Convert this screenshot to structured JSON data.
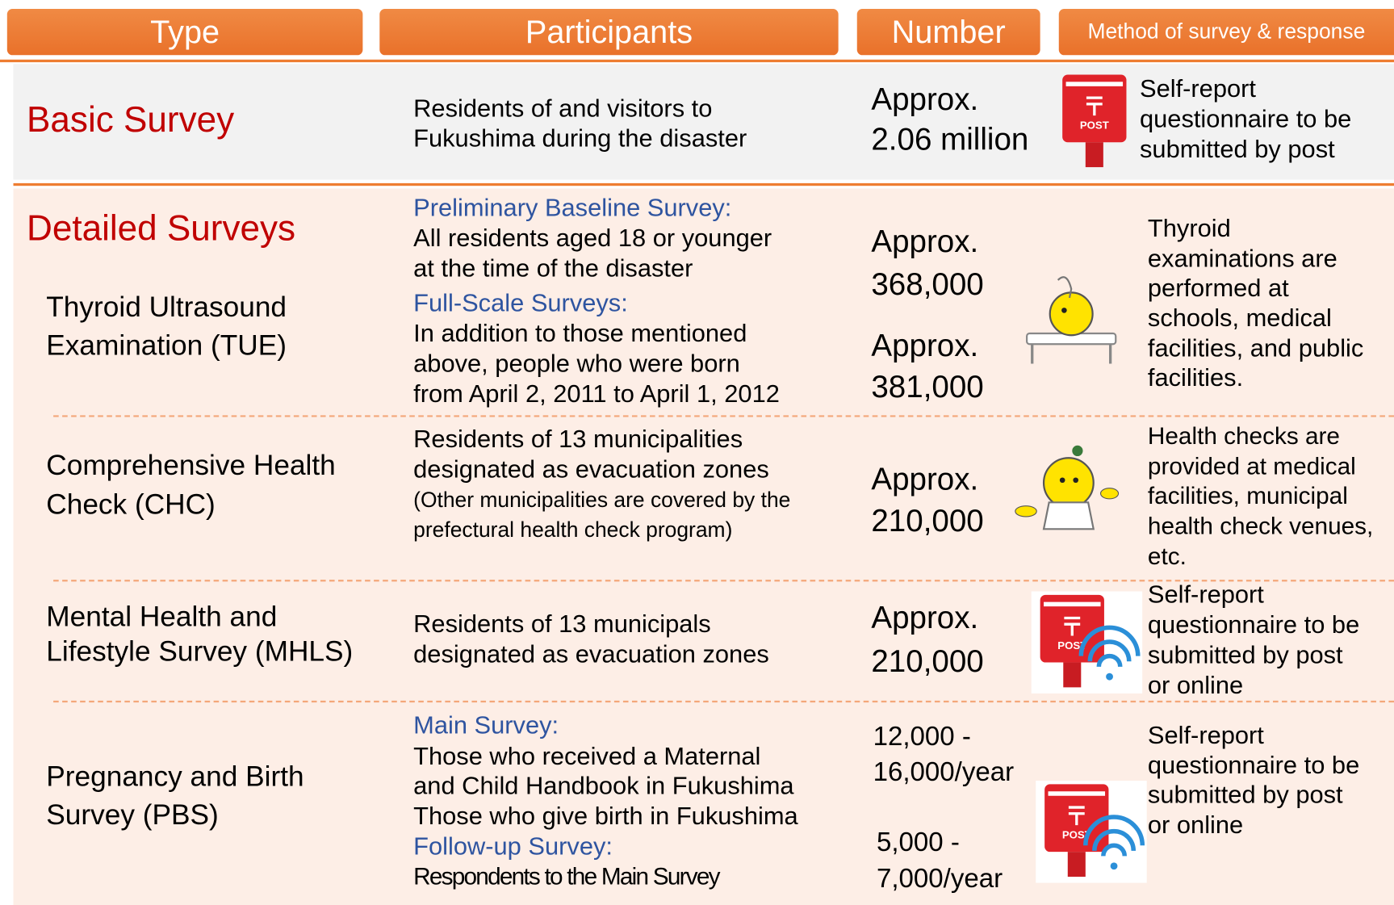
{
  "header": {
    "type": "Type",
    "participants": "Participants",
    "number": "Number",
    "method": "Method of survey & response"
  },
  "post_icon_label": "POST",
  "basic": {
    "type": "Basic Survey",
    "participants": [
      "Residents of and visitors to",
      "Fukushima during the disaster"
    ],
    "number": [
      "Approx.",
      "2.06 million"
    ],
    "method": [
      "Self-report",
      "questionnaire to be",
      "submitted by post"
    ]
  },
  "detailed": {
    "title": "Detailed Surveys",
    "rows": [
      {
        "type": [
          "Thyroid Ultrasound",
          "Examination (TUE)"
        ],
        "participants": [
          "Preliminary Baseline Survey:",
          "All residents aged 18 or younger",
          "at the time of the disaster",
          "Full-Scale Surveys:",
          "In addition to those mentioned",
          "above, people  who were born",
          "from April 2, 2011 to April 1, 2012"
        ],
        "number": [
          "Approx.",
          "368,000",
          "Approx.",
          "381,000"
        ],
        "method": [
          "Thyroid",
          "examinations are",
          "performed at",
          "schools, medical",
          "facilities, and public",
          "facilities."
        ]
      },
      {
        "type": [
          "Comprehensive Health",
          "Check (CHC)"
        ],
        "participants": [
          "Residents of 13 municipalities",
          "designated as evacuation zones",
          "(Other municipalities are covered by the",
          "prefectural health check program)"
        ],
        "number": [
          "Approx.",
          "210,000"
        ],
        "method": [
          "Health checks are",
          "provided at medical",
          "facilities, municipal",
          "health check venues,",
          "etc."
        ]
      },
      {
        "type": [
          "Mental Health and",
          "Lifestyle Survey (MHLS)"
        ],
        "participants": [
          "Residents of 13 municipals",
          "designated as evacuation zones"
        ],
        "number": [
          "Approx.",
          "210,000"
        ],
        "method": [
          "Self-report",
          "questionnaire to be",
          "submitted by post",
          "or online"
        ]
      },
      {
        "type": [
          "Pregnancy and Birth",
          "Survey (PBS)"
        ],
        "participants": [
          "Main  Survey:",
          "Those who received a Maternal",
          "and Child Handbook in Fukushima",
          "Those who give birth in Fukushima",
          "Follow-up Survey:",
          "Respondents to the Main Survey"
        ],
        "number": [
          "12,000 -",
          "16,000/year",
          "5,000 -",
          "7,000/year"
        ],
        "method": [
          "Self-report",
          "questionnaire to be",
          "submitted by post",
          "or online"
        ]
      }
    ]
  }
}
